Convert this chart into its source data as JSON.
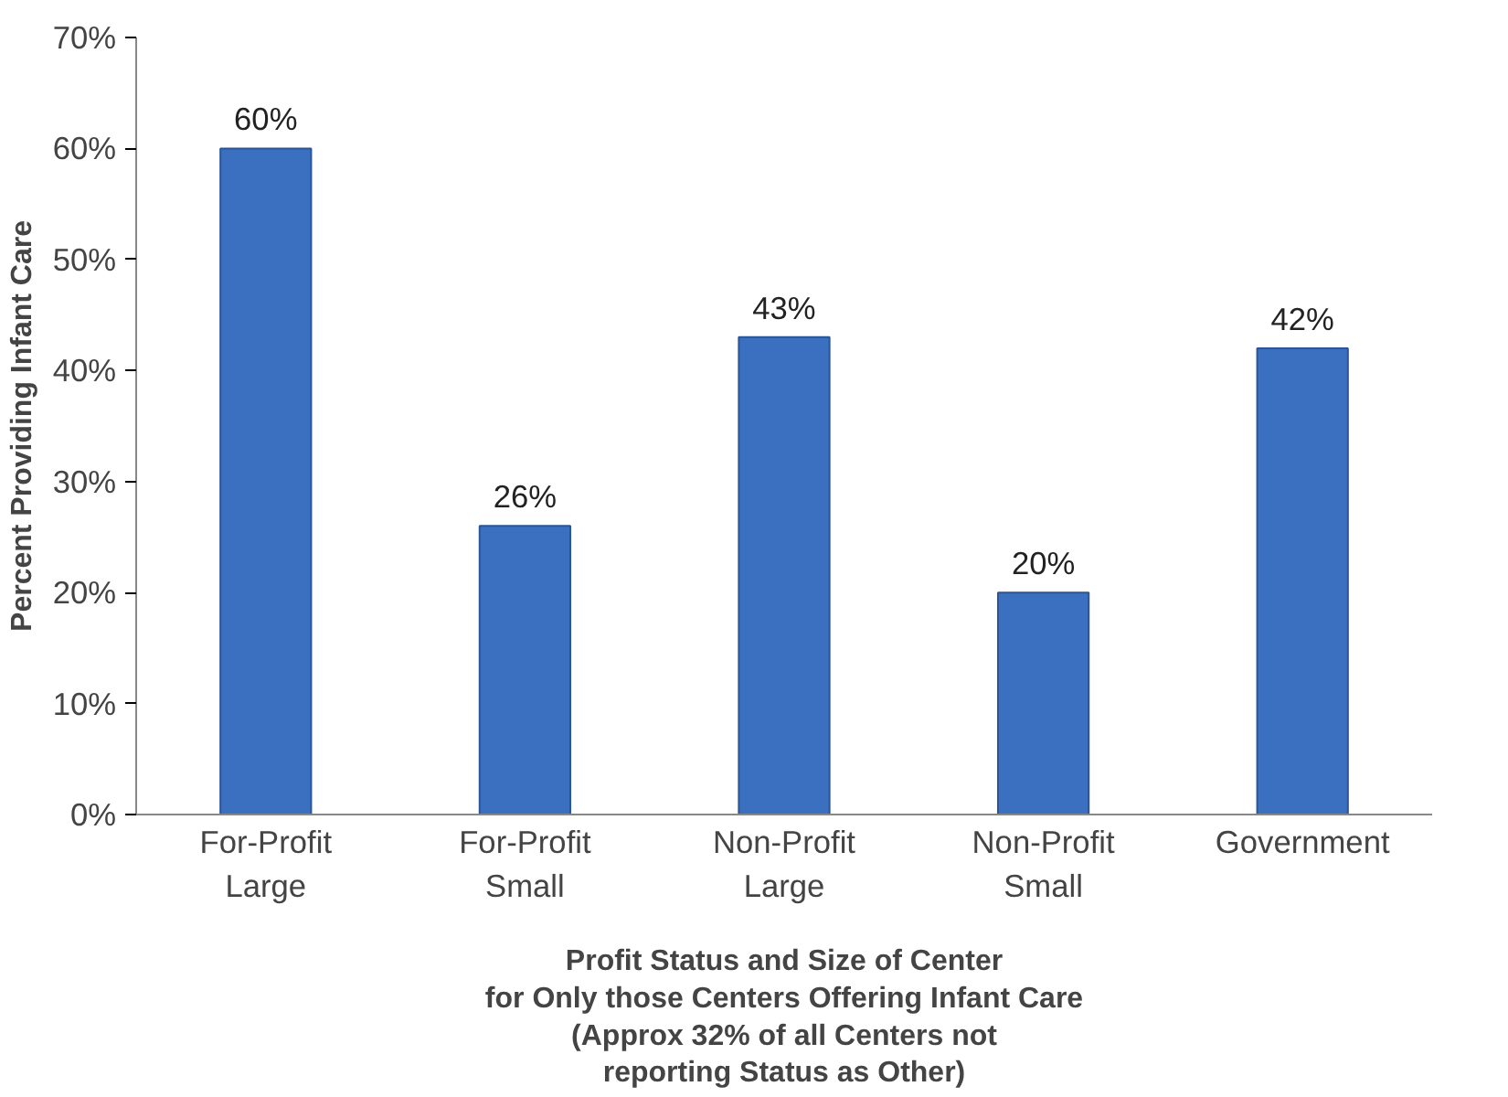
{
  "chart_data": {
    "type": "bar",
    "xlabel": "Profit Status and Size of Center\nfor Only those Centers Offering Infant Care\n(Approx 32% of all Centers not\nreporting Status as Other)",
    "ylabel": "Percent Providing Infant Care",
    "categories": [
      "For-Profit\nLarge",
      "For-Profit\nSmall",
      "Non-Profit\nLarge",
      "Non-Profit\nSmall",
      "Government"
    ],
    "values": [
      60,
      26,
      43,
      20,
      42
    ],
    "color": "#3b6fc0",
    "data_labels": true,
    "value_labels": [
      "60%",
      "26%",
      "43%",
      "20%",
      "42%"
    ],
    "ylim": [
      0,
      70
    ],
    "yticks": [
      {
        "value": 0,
        "label": "0%"
      },
      {
        "value": 10,
        "label": "10%"
      },
      {
        "value": 20,
        "label": "20%"
      },
      {
        "value": 30,
        "label": "30%"
      },
      {
        "value": 40,
        "label": "40%"
      },
      {
        "value": 50,
        "label": "50%"
      },
      {
        "value": 60,
        "label": "60%"
      },
      {
        "value": 70,
        "label": "70%"
      }
    ],
    "grid": false
  }
}
